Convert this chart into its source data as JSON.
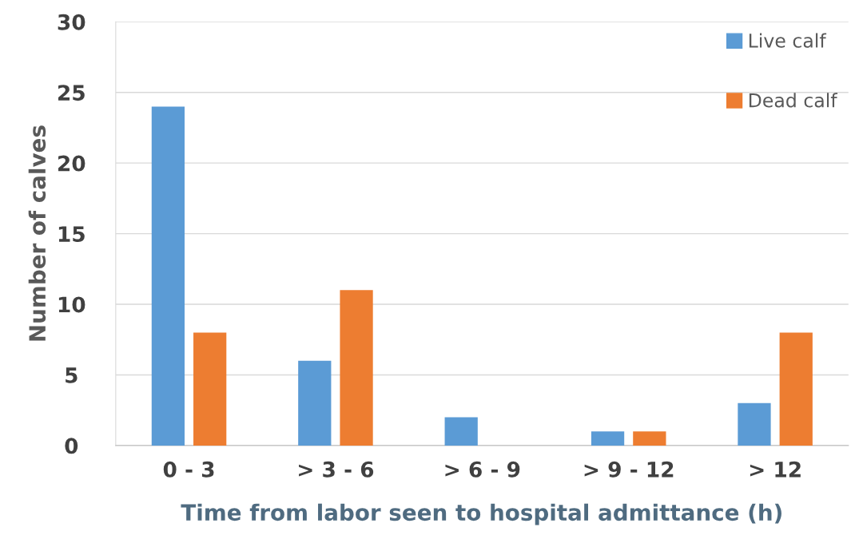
{
  "chart_data": {
    "type": "bar",
    "xlabel": "Time from labor seen to hospital admittance (h)",
    "ylabel": "Number of calves",
    "categories": [
      "0 - 3",
      "> 3 - 6",
      "> 6 - 9",
      "> 9 - 12",
      "> 12"
    ],
    "series": [
      {
        "name": "Live calf",
        "color": "#5b9bd5",
        "values": [
          24,
          6,
          2,
          1,
          3
        ]
      },
      {
        "name": "Dead calf",
        "color": "#ed7d31",
        "values": [
          8,
          11,
          0,
          1,
          8
        ]
      }
    ],
    "ylim": [
      0,
      30
    ],
    "yticks": [
      0,
      5,
      10,
      15,
      20,
      25,
      30
    ],
    "grid": "y",
    "legend": "top right"
  }
}
